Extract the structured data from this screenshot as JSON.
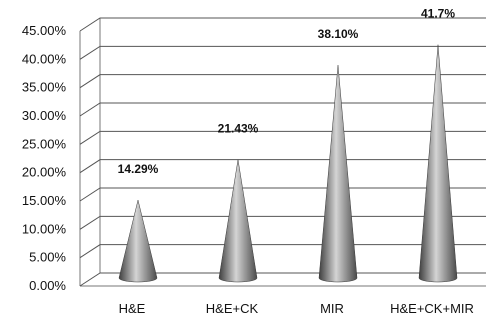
{
  "chart_data": {
    "type": "bar",
    "shape": "cone",
    "categories": [
      "H&E",
      "H&E+CK",
      "MIR",
      "H&E+CK+MIR"
    ],
    "values": [
      14.29,
      21.43,
      38.1,
      41.7
    ],
    "data_labels": [
      "14.29%",
      "21.43%",
      "38.10%",
      "41.7%"
    ],
    "ylim": [
      0,
      45
    ],
    "ytick_labels": [
      "0.00%",
      "5.00%",
      "10.00%",
      "15.00%",
      "20.00%",
      "25.00%",
      "30.00%",
      "35.00%",
      "40.00%",
      "45.00%"
    ],
    "grid": true,
    "legend": "none",
    "colors": {
      "cone_dark": "#3e3e3e",
      "cone_light": "#d4d4d4",
      "grid": "#555555",
      "axis": "#777777"
    }
  }
}
